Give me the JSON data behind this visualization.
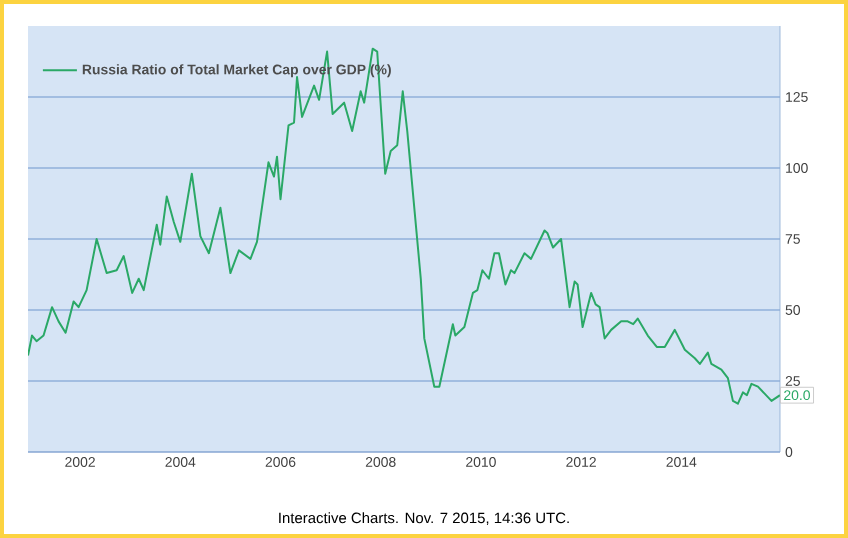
{
  "chart_data": {
    "type": "line",
    "x": [
      2000.96,
      2001.04,
      2001.13,
      2001.27,
      2001.44,
      2001.57,
      2001.71,
      2001.87,
      2001.97,
      2002.13,
      2002.33,
      2002.53,
      2002.73,
      2002.87,
      2003.04,
      2003.17,
      2003.27,
      2003.53,
      2003.6,
      2003.73,
      2003.87,
      2004.0,
      2004.23,
      2004.4,
      2004.57,
      2004.8,
      2005.0,
      2005.17,
      2005.4,
      2005.53,
      2005.76,
      2005.87,
      2005.93,
      2006.0,
      2006.16,
      2006.27,
      2006.33,
      2006.43,
      2006.67,
      2006.77,
      2006.93,
      2007.04,
      2007.27,
      2007.43,
      2007.6,
      2007.67,
      2007.84,
      2007.93,
      2008.09,
      2008.2,
      2008.33,
      2008.44,
      2008.53,
      2008.8,
      2008.87,
      2009.07,
      2009.17,
      2009.44,
      2009.49,
      2009.67,
      2009.84,
      2009.93,
      2010.03,
      2010.16,
      2010.27,
      2010.36,
      2010.49,
      2010.6,
      2010.67,
      2010.87,
      2011.0,
      2011.27,
      2011.33,
      2011.44,
      2011.6,
      2011.77,
      2011.87,
      2011.93,
      2012.03,
      2012.2,
      2012.29,
      2012.37,
      2012.47,
      2012.6,
      2012.8,
      2012.93,
      2013.04,
      2013.13,
      2013.33,
      2013.51,
      2013.67,
      2013.87,
      2014.07,
      2014.27,
      2014.37,
      2014.53,
      2014.6,
      2014.8,
      2014.93,
      2015.03,
      2015.13,
      2015.23,
      2015.31,
      2015.4,
      2015.53,
      2015.8,
      2015.97
    ],
    "series": [
      {
        "name": "Russia Ratio of Total Market Cap over GDP (%)",
        "color": "#2aa866",
        "values": [
          34,
          41,
          39,
          41,
          51,
          46,
          42,
          53,
          51,
          57,
          75,
          63,
          64,
          69,
          56,
          61,
          57,
          80,
          73,
          90,
          81,
          74,
          98,
          76,
          70,
          86,
          63,
          71,
          68,
          74,
          102,
          97,
          104,
          89,
          115,
          116,
          132,
          118,
          129,
          124,
          141,
          119,
          123,
          113,
          127,
          123,
          142,
          141,
          98,
          106,
          108,
          127,
          113,
          61,
          40,
          23,
          23,
          45,
          41,
          44,
          56,
          57,
          64,
          61,
          70,
          70,
          59,
          64,
          63,
          70,
          68,
          78,
          77,
          72,
          75,
          51,
          60,
          59,
          44,
          56,
          52,
          51,
          40,
          43,
          46,
          46,
          45,
          47,
          41,
          37,
          37,
          43,
          36,
          33,
          31,
          35,
          31,
          29,
          26,
          18,
          17,
          21,
          20,
          24,
          23,
          18,
          20.0
        ]
      }
    ],
    "xlim": [
      2000.96,
      2015.97
    ],
    "ylim": [
      0,
      150
    ],
    "xticks": [
      2002,
      2004,
      2006,
      2008,
      2010,
      2012,
      2014
    ],
    "yticks": [
      0,
      25,
      50,
      75,
      100,
      125
    ],
    "grid": "y",
    "legend": "top left",
    "marker": "none",
    "line_style": "solid",
    "annotations": [
      {
        "text": "20.0",
        "x": 2015.97,
        "y": 20.0
      },
      "Interactive Charts. Nov. 7 2015, 14:36 UTC."
    ]
  }
}
